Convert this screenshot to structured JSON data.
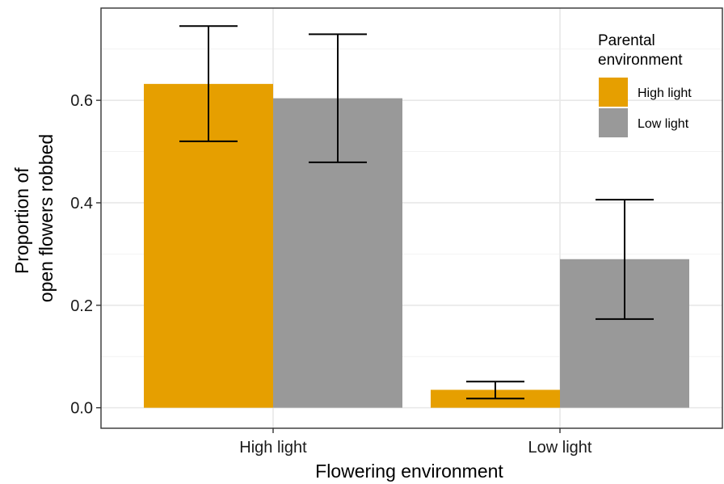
{
  "chart_data": {
    "type": "bar",
    "xlabel": "Flowering environment",
    "ylabel_lines": [
      "Proportion of",
      "open flowers robbed"
    ],
    "categories": [
      "High light",
      "Low light"
    ],
    "ylim": [
      -0.04,
      0.78
    ],
    "yticks": [
      0.0,
      0.2,
      0.4,
      0.6
    ],
    "ytick_labels": [
      "0.0",
      "0.2",
      "0.4",
      "0.6"
    ],
    "grid": true,
    "legend": {
      "title_lines": [
        "Parental",
        "environment"
      ],
      "placement": "top-right"
    },
    "series": [
      {
        "name": "High light",
        "color": "#E69F00",
        "values": [
          0.632,
          0.035
        ],
        "error_low": [
          0.52,
          0.018
        ],
        "error_high": [
          0.745,
          0.051
        ]
      },
      {
        "name": "Low light",
        "color": "#999999",
        "values": [
          0.604,
          0.29
        ],
        "error_low": [
          0.479,
          0.173
        ],
        "error_high": [
          0.729,
          0.406
        ]
      }
    ]
  }
}
